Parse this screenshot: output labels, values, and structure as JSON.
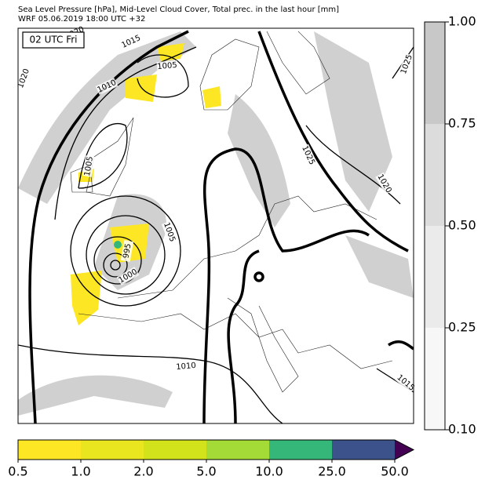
{
  "header": {
    "title": "Sea Level Pressure [hPa], Mid-Level Cloud Cover, Total prec. in the last hour [mm]",
    "subtitle": "WRF 05.06.2019 18:00 UTC +32"
  },
  "map": {
    "time_label": "02 UTC Fri",
    "isobar_labels": [
      "1020",
      "1015",
      "1005",
      "1010",
      "1020",
      "1025",
      "1025",
      "1020",
      "1005",
      "1005",
      "995",
      "1000",
      "1010",
      "1015"
    ]
  },
  "cloud_colorbar": {
    "ticks": [
      {
        "value": 0.1,
        "label": "0.10"
      },
      {
        "value": 0.25,
        "label": "0.25"
      },
      {
        "value": 0.5,
        "label": "0.50"
      },
      {
        "value": 0.75,
        "label": "0.75"
      },
      {
        "value": 1.0,
        "label": "1.00"
      }
    ],
    "colors": [
      "#f7f7f7",
      "#ebebeb",
      "#dcdcdc",
      "#c8c8c8"
    ]
  },
  "precip_colorbar": {
    "ticks": [
      0.5,
      {
        "value": 1.0,
        "label": "1.0"
      },
      {
        "value": 2.0,
        "label": "2.0"
      },
      {
        "value": 5.0,
        "label": "5.0"
      },
      {
        "value": 10.0,
        "label": "10.0"
      },
      {
        "value": 25.0,
        "label": "25.0"
      },
      {
        "value": 50.0,
        "label": "50.0"
      }
    ],
    "colors": [
      "#fde725",
      "#e9e51f",
      "#d2e21b",
      "#a5db36",
      "#35b779",
      "#3b528b",
      "#440154"
    ]
  }
}
